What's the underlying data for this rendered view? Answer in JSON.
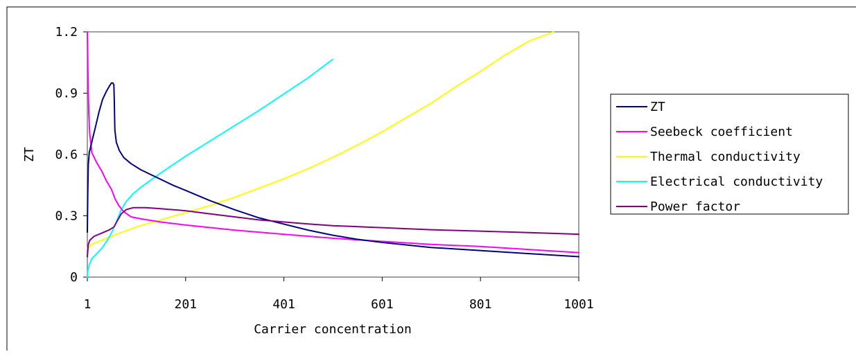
{
  "chart_data": {
    "type": "line",
    "title": "",
    "xlabel": "Carrier concentration",
    "ylabel": "ZT",
    "xlim": [
      1,
      1001
    ],
    "ylim": [
      0,
      1.2
    ],
    "x_ticks": [
      "1",
      "201",
      "401",
      "601",
      "801",
      "1001"
    ],
    "y_ticks": [
      "0",
      "0.3",
      "0.6",
      "0.9",
      "1.2"
    ],
    "grid": false,
    "legend_position": "right",
    "series": [
      {
        "name": "ZT",
        "color": "#000080",
        "points": [
          [
            1,
            0.22
          ],
          [
            2,
            0.42
          ],
          [
            3,
            0.55
          ],
          [
            5,
            0.61
          ],
          [
            8,
            0.64
          ],
          [
            12,
            0.68
          ],
          [
            18,
            0.74
          ],
          [
            25,
            0.81
          ],
          [
            32,
            0.87
          ],
          [
            40,
            0.91
          ],
          [
            46,
            0.935
          ],
          [
            50,
            0.95
          ],
          [
            53,
            0.95
          ],
          [
            55,
            0.94
          ],
          [
            56,
            0.85
          ],
          [
            57,
            0.72
          ],
          [
            60,
            0.66
          ],
          [
            66,
            0.62
          ],
          [
            75,
            0.585
          ],
          [
            90,
            0.555
          ],
          [
            110,
            0.525
          ],
          [
            140,
            0.49
          ],
          [
            175,
            0.45
          ],
          [
            200,
            0.425
          ],
          [
            250,
            0.375
          ],
          [
            300,
            0.33
          ],
          [
            350,
            0.29
          ],
          [
            400,
            0.26
          ],
          [
            450,
            0.23
          ],
          [
            500,
            0.205
          ],
          [
            550,
            0.185
          ],
          [
            600,
            0.17
          ],
          [
            700,
            0.145
          ],
          [
            800,
            0.13
          ],
          [
            900,
            0.115
          ],
          [
            1001,
            0.1
          ]
        ]
      },
      {
        "name": "Seebeck coefficient",
        "color": "#FF00FF",
        "points": [
          [
            1,
            1.2
          ],
          [
            2,
            1.05
          ],
          [
            3,
            0.9
          ],
          [
            4,
            0.8
          ],
          [
            6,
            0.7
          ],
          [
            10,
            0.61
          ],
          [
            20,
            0.56
          ],
          [
            30,
            0.52
          ],
          [
            40,
            0.47
          ],
          [
            50,
            0.43
          ],
          [
            58,
            0.38
          ],
          [
            65,
            0.35
          ],
          [
            75,
            0.32
          ],
          [
            90,
            0.295
          ],
          [
            110,
            0.285
          ],
          [
            150,
            0.27
          ],
          [
            200,
            0.255
          ],
          [
            300,
            0.23
          ],
          [
            400,
            0.21
          ],
          [
            500,
            0.19
          ],
          [
            600,
            0.175
          ],
          [
            700,
            0.16
          ],
          [
            800,
            0.15
          ],
          [
            900,
            0.135
          ],
          [
            1001,
            0.12
          ]
        ]
      },
      {
        "name": "Thermal conductivity",
        "color": "#FFFF00",
        "points": [
          [
            1,
            0.14
          ],
          [
            5,
            0.15
          ],
          [
            10,
            0.16
          ],
          [
            25,
            0.175
          ],
          [
            50,
            0.2
          ],
          [
            100,
            0.245
          ],
          [
            150,
            0.28
          ],
          [
            200,
            0.315
          ],
          [
            250,
            0.35
          ],
          [
            300,
            0.39
          ],
          [
            350,
            0.435
          ],
          [
            400,
            0.48
          ],
          [
            450,
            0.53
          ],
          [
            500,
            0.585
          ],
          [
            550,
            0.645
          ],
          [
            600,
            0.71
          ],
          [
            650,
            0.78
          ],
          [
            700,
            0.85
          ],
          [
            750,
            0.93
          ],
          [
            800,
            1.005
          ],
          [
            850,
            1.085
          ],
          [
            900,
            1.155
          ],
          [
            950,
            1.2
          ]
        ]
      },
      {
        "name": "Electrical conductivity",
        "color": "#00FFFF",
        "points": [
          [
            1,
            0.0
          ],
          [
            2,
            0.03
          ],
          [
            5,
            0.06
          ],
          [
            10,
            0.09
          ],
          [
            20,
            0.115
          ],
          [
            30,
            0.14
          ],
          [
            40,
            0.175
          ],
          [
            50,
            0.215
          ],
          [
            60,
            0.27
          ],
          [
            70,
            0.33
          ],
          [
            80,
            0.37
          ],
          [
            95,
            0.41
          ],
          [
            110,
            0.44
          ],
          [
            130,
            0.475
          ],
          [
            160,
            0.525
          ],
          [
            200,
            0.59
          ],
          [
            250,
            0.665
          ],
          [
            300,
            0.74
          ],
          [
            350,
            0.815
          ],
          [
            400,
            0.895
          ],
          [
            450,
            0.975
          ],
          [
            500,
            1.065
          ]
        ]
      },
      {
        "name": "Power factor",
        "color": "#800080",
        "points": [
          [
            1,
            0.1
          ],
          [
            3,
            0.16
          ],
          [
            6,
            0.18
          ],
          [
            15,
            0.2
          ],
          [
            30,
            0.215
          ],
          [
            45,
            0.23
          ],
          [
            55,
            0.245
          ],
          [
            62,
            0.275
          ],
          [
            70,
            0.31
          ],
          [
            80,
            0.33
          ],
          [
            95,
            0.34
          ],
          [
            120,
            0.34
          ],
          [
            150,
            0.335
          ],
          [
            200,
            0.325
          ],
          [
            250,
            0.31
          ],
          [
            300,
            0.295
          ],
          [
            350,
            0.28
          ],
          [
            400,
            0.27
          ],
          [
            450,
            0.26
          ],
          [
            500,
            0.252
          ],
          [
            600,
            0.242
          ],
          [
            700,
            0.232
          ],
          [
            800,
            0.225
          ],
          [
            900,
            0.218
          ],
          [
            1001,
            0.21
          ]
        ]
      }
    ]
  }
}
